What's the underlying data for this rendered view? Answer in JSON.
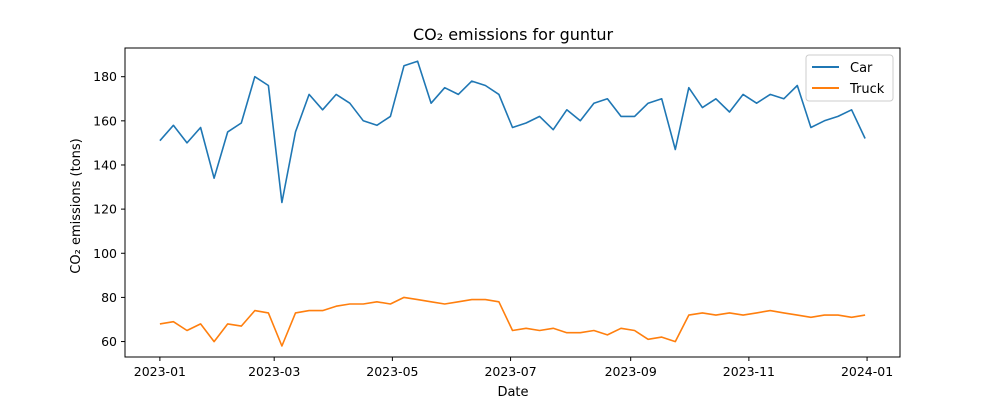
{
  "chart_data": {
    "type": "line",
    "title": "CO₂ emissions for guntur",
    "xlabel": "Date",
    "ylabel": "CO₂ emissions (tons)",
    "x_ticks": [
      "2023-01",
      "2023-03",
      "2023-05",
      "2023-07",
      "2023-09",
      "2023-11",
      "2024-01"
    ],
    "x_tick_values": [
      "2023-01-01",
      "2023-03-01",
      "2023-05-01",
      "2023-07-01",
      "2023-09-01",
      "2023-11-01",
      "2024-01-01"
    ],
    "y_ticks": [
      60,
      80,
      100,
      120,
      140,
      160,
      180
    ],
    "xlim": [
      "2022-12-14",
      "2024-01-18"
    ],
    "ylim": [
      53,
      193
    ],
    "grid": false,
    "legend": "top-right",
    "colors": {
      "Car": "#1f77b4",
      "Truck": "#ff7f0e"
    },
    "x": [
      "2023-01-01",
      "2023-01-08",
      "2023-01-15",
      "2023-01-22",
      "2023-01-29",
      "2023-02-05",
      "2023-02-12",
      "2023-02-19",
      "2023-02-26",
      "2023-03-05",
      "2023-03-12",
      "2023-03-19",
      "2023-03-26",
      "2023-04-02",
      "2023-04-09",
      "2023-04-16",
      "2023-04-23",
      "2023-04-30",
      "2023-05-07",
      "2023-05-14",
      "2023-05-21",
      "2023-05-28",
      "2023-06-04",
      "2023-06-11",
      "2023-06-18",
      "2023-06-25",
      "2023-07-02",
      "2023-07-09",
      "2023-07-16",
      "2023-07-23",
      "2023-07-30",
      "2023-08-06",
      "2023-08-13",
      "2023-08-20",
      "2023-08-27",
      "2023-09-03",
      "2023-09-10",
      "2023-09-17",
      "2023-09-24",
      "2023-10-01",
      "2023-10-08",
      "2023-10-15",
      "2023-10-22",
      "2023-10-29",
      "2023-11-05",
      "2023-11-12",
      "2023-11-19",
      "2023-11-26",
      "2023-12-03",
      "2023-12-10",
      "2023-12-17",
      "2023-12-24",
      "2023-12-31"
    ],
    "series": [
      {
        "name": "Car",
        "values": [
          151,
          158,
          150,
          157,
          134,
          155,
          159,
          180,
          176,
          123,
          155,
          172,
          165,
          172,
          168,
          160,
          158,
          162,
          185,
          187,
          168,
          175,
          172,
          178,
          176,
          172,
          157,
          159,
          162,
          156,
          165,
          160,
          168,
          170,
          162,
          162,
          168,
          170,
          147,
          175,
          166,
          170,
          164,
          172,
          168,
          172,
          170,
          176,
          157,
          160,
          162,
          165,
          152
        ]
      },
      {
        "name": "Truck",
        "values": [
          68,
          69,
          65,
          68,
          60,
          68,
          67,
          74,
          73,
          58,
          73,
          74,
          74,
          76,
          77,
          77,
          78,
          77,
          80,
          79,
          78,
          77,
          78,
          79,
          79,
          78,
          65,
          66,
          65,
          66,
          64,
          64,
          65,
          63,
          66,
          65,
          61,
          62,
          60,
          72,
          73,
          72,
          73,
          72,
          73,
          74,
          73,
          72,
          71,
          72,
          72,
          71,
          72
        ]
      }
    ]
  }
}
